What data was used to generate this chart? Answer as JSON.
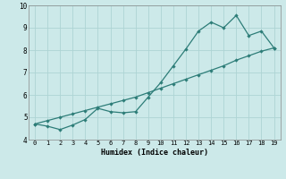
{
  "x": [
    0,
    1,
    2,
    3,
    4,
    5,
    6,
    7,
    8,
    9,
    10,
    11,
    12,
    13,
    14,
    15,
    16,
    17,
    18,
    19
  ],
  "y_curve": [
    4.7,
    4.6,
    4.45,
    4.65,
    4.9,
    5.4,
    5.25,
    5.2,
    5.25,
    5.9,
    6.55,
    7.3,
    8.05,
    8.85,
    9.25,
    9.0,
    9.55,
    8.65,
    8.85,
    8.1
  ],
  "y_line": [
    4.7,
    4.85,
    5.0,
    5.15,
    5.3,
    5.45,
    5.6,
    5.75,
    5.9,
    6.1,
    6.3,
    6.5,
    6.7,
    6.9,
    7.1,
    7.3,
    7.55,
    7.75,
    7.95,
    8.1
  ],
  "color": "#2d7d78",
  "xlabel": "Humidex (Indice chaleur)",
  "ylim": [
    4.0,
    10.0
  ],
  "xlim": [
    -0.5,
    19.5
  ],
  "yticks": [
    4,
    5,
    6,
    7,
    8,
    9,
    10
  ],
  "xticks": [
    0,
    1,
    2,
    3,
    4,
    5,
    6,
    7,
    8,
    9,
    10,
    11,
    12,
    13,
    14,
    15,
    16,
    17,
    18,
    19
  ],
  "bg_color": "#cce9e9",
  "grid_color": "#aed4d4"
}
